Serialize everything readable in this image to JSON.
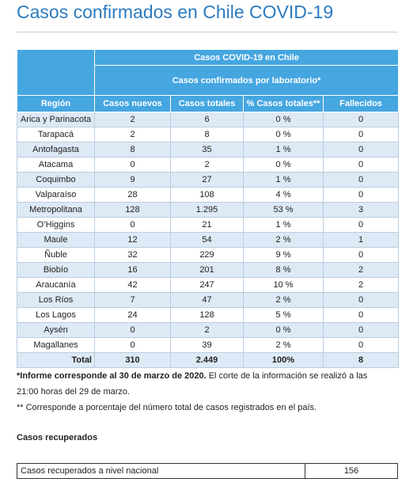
{
  "header": {
    "title": "Casos confirmados en Chile COVID-19"
  },
  "table": {
    "caption1": "Casos COVID-19 en Chile",
    "caption2": "Casos confirmados por laboratorio*",
    "columns": [
      "Región",
      "Casos nuevos",
      "Casos totales",
      "% Casos totales**",
      "Fallecidos"
    ],
    "rows": [
      [
        "Arica y Parinacota",
        "2",
        "6",
        "0 %",
        "0"
      ],
      [
        "Tarapacá",
        "2",
        "8",
        "0 %",
        "0"
      ],
      [
        "Antofagasta",
        "8",
        "35",
        "1 %",
        "0"
      ],
      [
        "Atacama",
        "0",
        "2",
        "0 %",
        "0"
      ],
      [
        "Coquimbo",
        "9",
        "27",
        "1 %",
        "0"
      ],
      [
        "Valparaíso",
        "28",
        "108",
        "4 %",
        "0"
      ],
      [
        "Metropolitana",
        "128",
        "1.295",
        "53 %",
        "3"
      ],
      [
        "O’Higgins",
        "0",
        "21",
        "1 %",
        "0"
      ],
      [
        "Maule",
        "12",
        "54",
        "2 %",
        "1"
      ],
      [
        "Ñuble",
        "32",
        "229",
        "9 %",
        "0"
      ],
      [
        "Biobío",
        "16",
        "201",
        "8 %",
        "2"
      ],
      [
        "Araucanía",
        "42",
        "247",
        "10 %",
        "2"
      ],
      [
        "Los Ríos",
        "7",
        "47",
        "2 %",
        "0"
      ],
      [
        "Los Lagos",
        "24",
        "128",
        "5 %",
        "0"
      ],
      [
        "Aysén",
        "0",
        "2",
        "0 %",
        "0"
      ],
      [
        "Magallanes",
        "0",
        "39",
        "2 %",
        "0"
      ]
    ],
    "total": [
      "Total",
      "310",
      "2.449",
      "100%",
      "8"
    ]
  },
  "notes": {
    "note1_bold": "*Informe corresponde al 30 de marzo de 2020.",
    "note1_rest": "El corte de la información se realizó a las 21:00 horas del 29 de marzo.",
    "note2": "** Corresponde a porcentaje del número total de casos registrados en el país."
  },
  "recovered": {
    "heading": "Casos recuperados",
    "label": "Casos recuperados a nivel nacional",
    "value": "156"
  }
}
